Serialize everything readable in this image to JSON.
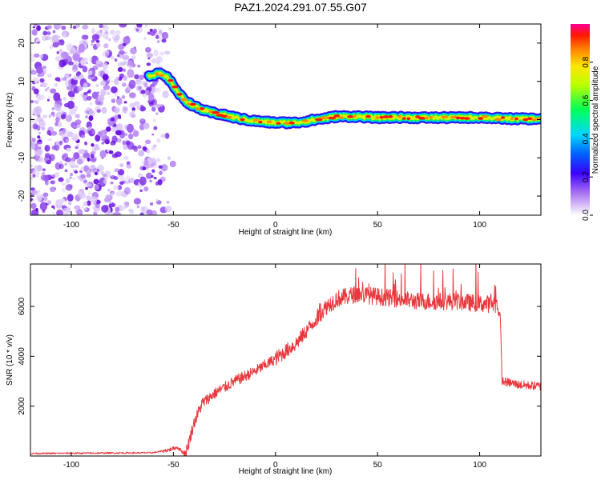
{
  "title": "PAZ1.2024.291.07.55.G07",
  "chart_data": [
    {
      "type": "heatmap",
      "xlabel": "Height of straight line (km)",
      "ylabel": "Frequency (Hz)",
      "xlim": [
        -120,
        130
      ],
      "ylim": [
        -25,
        25
      ],
      "xticks": [
        -100,
        -50,
        0,
        50,
        100
      ],
      "yticks": [
        -20,
        -10,
        0,
        10,
        20
      ],
      "colorbar": {
        "label": "Normalized spectral amplitude",
        "range": [
          0,
          1
        ],
        "ticks": [
          0.0,
          0.2,
          0.4,
          0.6,
          0.8
        ],
        "colormap": [
          "#ffffff",
          "#c9a6f5",
          "#8a2be2",
          "#0000ff",
          "#00c8ff",
          "#00ff64",
          "#aaff00",
          "#ffff00",
          "#ff8000",
          "#ff0000",
          "#ff0080"
        ]
      },
      "ridge": {
        "x": [
          -62,
          -57,
          -53,
          -50,
          -47,
          -43,
          -38,
          -33,
          -28,
          -22,
          -15,
          -8,
          0,
          10,
          20,
          30,
          40,
          50,
          60,
          70,
          80,
          90,
          100,
          110,
          120,
          130
        ],
        "y": [
          11.5,
          12,
          11,
          9,
          6.5,
          4.5,
          3,
          2,
          1.5,
          0.8,
          0,
          -0.5,
          -0.8,
          -0.8,
          0,
          0.8,
          0.8,
          0.5,
          0.6,
          0.5,
          0.5,
          0.5,
          0.6,
          0.3,
          0.2,
          0.2
        ]
      },
      "noise_region": [
        -120,
        -48
      ]
    },
    {
      "type": "line",
      "xlabel": "Height of straight line (km)",
      "ylabel": "SNR (10 * v/v)",
      "xlim": [
        -120,
        130
      ],
      "ylim": [
        0,
        7700
      ],
      "xticks": [
        -100,
        -50,
        0,
        50,
        100
      ],
      "yticks": [
        2000,
        4000,
        6000
      ],
      "color": "#e8383d",
      "series": [
        {
          "x": [
            -120,
            -60,
            -52,
            -48,
            -44,
            -40,
            -36,
            -30,
            -20,
            -10,
            0,
            10,
            20,
            25,
            30,
            40,
            50,
            60,
            70,
            80,
            90,
            100,
            108,
            110,
            111,
            120,
            130
          ],
          "values": [
            100,
            130,
            250,
            350,
            50,
            1300,
            2100,
            2500,
            3000,
            3400,
            3900,
            4500,
            5500,
            6000,
            6300,
            6500,
            6400,
            6300,
            6200,
            6200,
            6200,
            6100,
            6100,
            5800,
            3000,
            2850,
            2800
          ]
        }
      ]
    }
  ]
}
